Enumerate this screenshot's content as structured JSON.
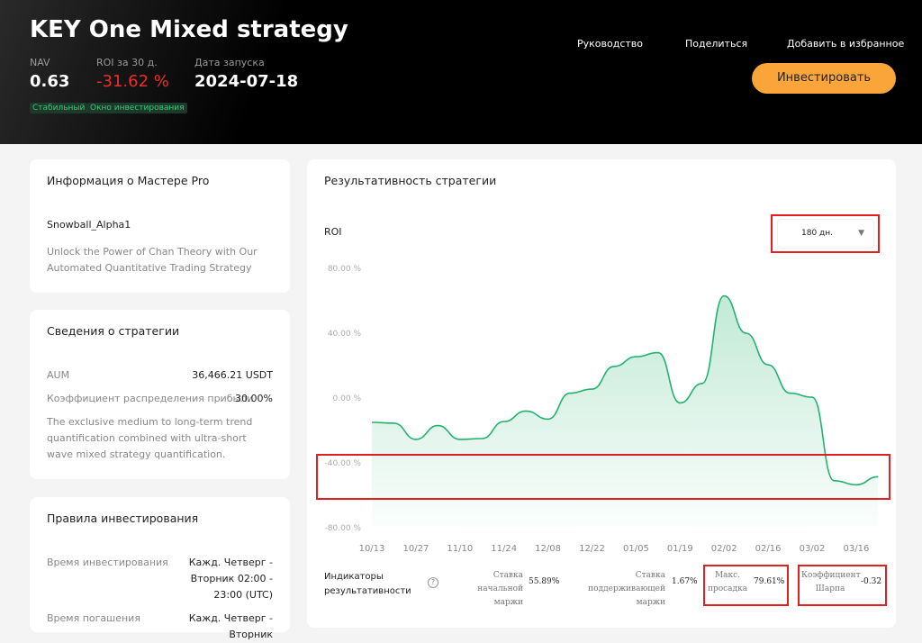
{
  "header": {
    "title": "KEY One Mixed strategy",
    "nav_label": "NAV",
    "nav": "0.63",
    "roi_label": "ROI за 30 д.",
    "roi": "-31.62 %",
    "launch_label": "Дата запуска",
    "launch": "2024-07-18",
    "tags": [
      "Стабильный",
      "Окно инвестирования"
    ],
    "links": [
      "Руководство",
      "Поделиться",
      "Добавить в избранное"
    ],
    "invest": "Инвестировать"
  },
  "master": {
    "title": "Информация о Мастере Pro",
    "name": "Snowball_Alpha1",
    "description": "Unlock the Power of Chan Theory with Our Automated Quantitative Trading Strategy"
  },
  "strategy": {
    "title": "Сведения о стратегии",
    "rows": [
      [
        "AUM",
        "36,466.21 USDT"
      ],
      [
        "Коэффициент распределения прибыли",
        "30.00%"
      ]
    ],
    "description": "The exclusive medium to long-term trend quantification combined with ultra-short wave mixed strategy quantification."
  },
  "rules": {
    "title": "Правила инвестирования",
    "rows": [
      [
        "Время инвестирования",
        "Кажд. Четверг - Вторник 02:00 - 23:00 (UTC)"
      ],
      [
        "Время погашения",
        "Кажд. Четверг - Вторник"
      ]
    ]
  },
  "performance": {
    "title": "Результативность стратегии",
    "period": "180 дн.",
    "metrics_title": "Индикаторы результативности",
    "metrics": [
      {
        "label": "Ставка начальной маржи",
        "value": "55.89%"
      },
      {
        "label": "Ставка поддерживающей маржи",
        "value": "1.67%"
      },
      {
        "label": "Макс. просадка",
        "value": "79.61%"
      },
      {
        "label": "Коэффициент Шарпа",
        "value": "-0.32"
      }
    ]
  },
  "chart_data": {
    "type": "area",
    "y_label": "ROI",
    "color": "#23b26d",
    "categories": [
      "10/13",
      null,
      "10/27",
      null,
      "11/10",
      null,
      "11/24",
      null,
      "12/08",
      null,
      "12/22",
      null,
      "01/05",
      null,
      "01/19",
      null,
      "02/02",
      null,
      "02/16",
      null,
      "03/02",
      null,
      "03/16",
      null
    ],
    "values": [
      -15,
      -15.5,
      -25.5,
      -17,
      -25.5,
      -25,
      -14.5,
      -8,
      -13,
      3,
      5.5,
      19.5,
      25.5,
      28,
      -3,
      9,
      63,
      40,
      20.5,
      3,
      0.5,
      -51,
      -53.5,
      -48.5
    ],
    "ylim": [
      -80,
      80
    ],
    "yticks": [
      {
        "value": 80,
        "label": "80.00 %"
      },
      {
        "value": 40,
        "label": "40.00 %"
      },
      {
        "value": 0,
        "label": "0.00 %"
      },
      {
        "value": -40,
        "label": "-40.00 %"
      },
      {
        "value": -80,
        "label": "-80.00 %"
      }
    ]
  }
}
